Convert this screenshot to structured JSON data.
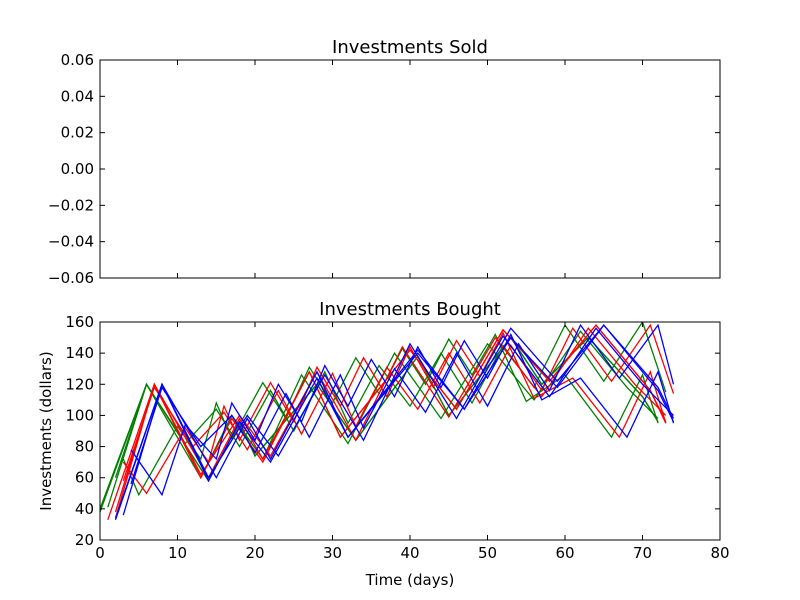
{
  "chart_data": [
    {
      "type": "line",
      "title": "Investments Sold",
      "xlabel": "",
      "ylabel": "",
      "xlim": [
        0,
        80
      ],
      "ylim": [
        -0.06,
        0.06
      ],
      "yticks": [
        0.06,
        0.04,
        0.02,
        0.0,
        -0.02,
        -0.04,
        -0.06
      ],
      "ytick_labels": [
        "0.06",
        "0.04",
        "0.02",
        "0.00",
        "−0.02",
        "−0.04",
        "−0.06"
      ],
      "grid": false,
      "series": []
    },
    {
      "type": "line",
      "title": "Investments Bought",
      "xlabel": "Time (days)",
      "ylabel": "Investments (dollars)",
      "xlim": [
        0,
        80
      ],
      "ylim": [
        20,
        160
      ],
      "xticks": [
        0,
        10,
        20,
        30,
        40,
        50,
        60,
        70,
        80
      ],
      "yticks": [
        20,
        40,
        60,
        80,
        100,
        120,
        140,
        160
      ],
      "grid": false,
      "series": [
        {
          "color": "#008000",
          "points": [
            [
              0,
              38
            ],
            [
              6,
              120
            ],
            [
              14,
              58
            ],
            [
              18,
              96
            ],
            [
              20,
              74
            ],
            [
              28,
              120
            ],
            [
              33,
              84
            ],
            [
              41,
              138
            ],
            [
              45,
              100
            ],
            [
              53,
              150
            ],
            [
              57,
              120
            ],
            [
              63,
              150
            ],
            [
              70,
              112
            ],
            [
              72,
              96
            ]
          ]
        },
        {
          "color": "#008000",
          "points": [
            [
              1,
              41
            ],
            [
              6,
              120
            ],
            [
              13,
              60
            ],
            [
              17,
              100
            ],
            [
              21,
              72
            ],
            [
              26,
              126
            ],
            [
              32,
              82
            ],
            [
              38,
              140
            ],
            [
              44,
              98
            ],
            [
              50,
              146
            ],
            [
              56,
              110
            ],
            [
              62,
              154
            ],
            [
              68,
              118
            ],
            [
              72,
              98
            ]
          ]
        },
        {
          "color": "#008000",
          "points": [
            [
              0,
              40
            ],
            [
              6,
              120
            ],
            [
              14,
              58
            ],
            [
              18,
              96
            ],
            [
              20,
              74
            ],
            [
              28,
              120
            ],
            [
              33,
              84
            ],
            [
              41,
              138
            ],
            [
              45,
              100
            ],
            [
              53,
              150
            ],
            [
              57,
              120
            ],
            [
              63,
              150
            ],
            [
              70,
              112
            ],
            [
              72,
              96
            ]
          ]
        },
        {
          "color": "#008000",
          "points": [
            [
              3,
              72
            ],
            [
              5,
              49
            ],
            [
              10,
              93
            ],
            [
              13,
              72
            ],
            [
              15,
              108
            ],
            [
              17,
              85
            ],
            [
              21,
              121
            ],
            [
              24,
              98
            ],
            [
              27,
              131
            ],
            [
              30,
              108
            ],
            [
              33,
              137
            ],
            [
              36,
              114
            ],
            [
              39,
              143
            ],
            [
              42,
              120
            ],
            [
              45,
              149
            ],
            [
              48,
              126
            ],
            [
              51,
              152
            ],
            [
              55,
              109
            ],
            [
              60,
              126
            ],
            [
              66,
              86
            ],
            [
              70,
              126
            ],
            [
              72,
              95
            ]
          ]
        },
        {
          "color": "#008000",
          "points": [
            [
              2,
              60
            ],
            [
              6,
              120
            ],
            [
              11,
              82
            ],
            [
              15,
              104
            ],
            [
              18,
              80
            ],
            [
              22,
              116
            ],
            [
              25,
              90
            ],
            [
              29,
              128
            ],
            [
              32,
              95
            ],
            [
              36,
              132
            ],
            [
              40,
              106
            ],
            [
              44,
              140
            ],
            [
              48,
              108
            ],
            [
              52,
              145
            ],
            [
              56,
              118
            ],
            [
              60,
              158
            ],
            [
              65,
              122
            ],
            [
              70,
              160
            ],
            [
              73,
              115
            ]
          ]
        },
        {
          "color": "#ff0000",
          "points": [
            [
              1,
              33
            ],
            [
              7,
              120
            ],
            [
              13,
              60
            ],
            [
              17,
              98
            ],
            [
              21,
              70
            ],
            [
              27,
              128
            ],
            [
              31,
              86
            ],
            [
              40,
              142
            ],
            [
              46,
              104
            ],
            [
              52,
              155
            ],
            [
              58,
              122
            ],
            [
              64,
              158
            ],
            [
              71,
              116
            ],
            [
              73,
              95
            ]
          ]
        },
        {
          "color": "#ff0000",
          "points": [
            [
              2,
              38
            ],
            [
              7,
              120
            ],
            [
              13,
              62
            ],
            [
              18,
              100
            ],
            [
              22,
              74
            ],
            [
              28,
              128
            ],
            [
              33,
              84
            ],
            [
              39,
              144
            ],
            [
              45,
              99
            ],
            [
              51,
              150
            ],
            [
              57,
              112
            ],
            [
              63,
              156
            ],
            [
              69,
              120
            ],
            [
              73,
              100
            ]
          ]
        },
        {
          "color": "#ff0000",
          "points": [
            [
              2,
              34
            ],
            [
              7,
              120
            ],
            [
              14,
              60
            ],
            [
              18,
              98
            ],
            [
              21,
              72
            ],
            [
              27,
              128
            ],
            [
              31,
              86
            ],
            [
              40,
              142
            ],
            [
              46,
              104
            ],
            [
              52,
              155
            ],
            [
              58,
              122
            ],
            [
              64,
              158
            ],
            [
              71,
              116
            ],
            [
              73,
              96
            ]
          ]
        },
        {
          "color": "#ff0000",
          "points": [
            [
              3,
              70
            ],
            [
              6,
              50
            ],
            [
              11,
              92
            ],
            [
              14,
              70
            ],
            [
              16,
              106
            ],
            [
              18,
              84
            ],
            [
              22,
              121
            ],
            [
              25,
              96
            ],
            [
              28,
              131
            ],
            [
              31,
              106
            ],
            [
              34,
              137
            ],
            [
              37,
              112
            ],
            [
              40,
              144
            ],
            [
              43,
              118
            ],
            [
              46,
              148
            ],
            [
              49,
              125
            ],
            [
              52,
              153
            ],
            [
              56,
              111
            ],
            [
              61,
              124
            ],
            [
              67,
              86
            ],
            [
              71,
              128
            ],
            [
              73,
              95
            ]
          ]
        },
        {
          "color": "#ff0000",
          "points": [
            [
              3,
              58
            ],
            [
              7,
              118
            ],
            [
              12,
              80
            ],
            [
              16,
              102
            ],
            [
              19,
              78
            ],
            [
              23,
              116
            ],
            [
              26,
              88
            ],
            [
              30,
              127
            ],
            [
              33,
              93
            ],
            [
              37,
              131
            ],
            [
              41,
              104
            ],
            [
              45,
              140
            ],
            [
              49,
              108
            ],
            [
              53,
              145
            ],
            [
              57,
              116
            ],
            [
              61,
              156
            ],
            [
              66,
              122
            ],
            [
              71,
              158
            ],
            [
              74,
              114
            ]
          ]
        },
        {
          "color": "#0000ff",
          "points": [
            [
              2,
              33
            ],
            [
              8,
              120
            ],
            [
              14,
              58
            ],
            [
              18,
              96
            ],
            [
              22,
              70
            ],
            [
              28,
              124
            ],
            [
              32,
              86
            ],
            [
              41,
              140
            ],
            [
              47,
              104
            ],
            [
              53,
              150
            ],
            [
              59,
              118
            ],
            [
              65,
              158
            ],
            [
              72,
              118
            ],
            [
              74,
              98
            ]
          ]
        },
        {
          "color": "#0000ff",
          "points": [
            [
              3,
              36
            ],
            [
              8,
              120
            ],
            [
              14,
              60
            ],
            [
              19,
              100
            ],
            [
              23,
              74
            ],
            [
              29,
              126
            ],
            [
              34,
              84
            ],
            [
              40,
              146
            ],
            [
              46,
              98
            ],
            [
              52,
              151
            ],
            [
              58,
              112
            ],
            [
              64,
              156
            ],
            [
              70,
              120
            ],
            [
              74,
              100
            ]
          ]
        },
        {
          "color": "#0000ff",
          "points": [
            [
              2,
              34
            ],
            [
              8,
              120
            ],
            [
              15,
              60
            ],
            [
              19,
              98
            ],
            [
              22,
              72
            ],
            [
              28,
              128
            ],
            [
              32,
              86
            ],
            [
              41,
              142
            ],
            [
              47,
              104
            ],
            [
              53,
              156
            ],
            [
              59,
              122
            ],
            [
              65,
              158
            ],
            [
              72,
              116
            ],
            [
              74,
              96
            ]
          ]
        },
        {
          "color": "#0000ff",
          "points": [
            [
              4,
              78
            ],
            [
              8,
              49
            ],
            [
              11,
              94
            ],
            [
              15,
              72
            ],
            [
              17,
              108
            ],
            [
              20,
              84
            ],
            [
              23,
              120
            ],
            [
              26,
              96
            ],
            [
              29,
              132
            ],
            [
              32,
              106
            ],
            [
              35,
              136
            ],
            [
              38,
              112
            ],
            [
              41,
              144
            ],
            [
              44,
              118
            ],
            [
              47,
              148
            ],
            [
              50,
              124
            ],
            [
              53,
              152
            ],
            [
              57,
              110
            ],
            [
              62,
              124
            ],
            [
              68,
              86
            ],
            [
              72,
              128
            ],
            [
              74,
              95
            ]
          ]
        },
        {
          "color": "#0000ff",
          "points": [
            [
              4,
              56
            ],
            [
              8,
              118
            ],
            [
              13,
              80
            ],
            [
              17,
              100
            ],
            [
              20,
              76
            ],
            [
              24,
              114
            ],
            [
              27,
              86
            ],
            [
              31,
              126
            ],
            [
              34,
              92
            ],
            [
              38,
              130
            ],
            [
              42,
              102
            ],
            [
              46,
              140
            ],
            [
              50,
              106
            ],
            [
              54,
              146
            ],
            [
              58,
              116
            ],
            [
              62,
              158
            ],
            [
              67,
              124
            ],
            [
              72,
              158
            ],
            [
              74,
              120
            ]
          ]
        }
      ]
    }
  ]
}
